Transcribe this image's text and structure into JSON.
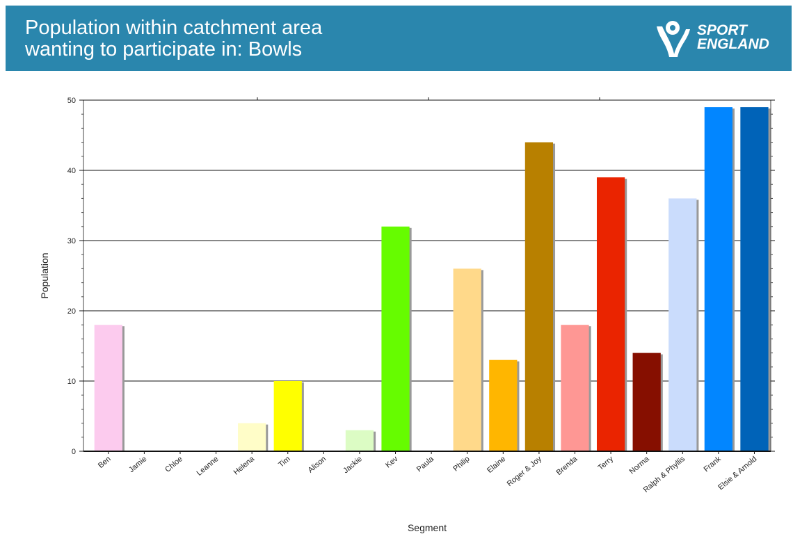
{
  "header": {
    "title_line1": "Population within catchment area",
    "title_line2": "wanting to participate in: Bowls",
    "logo_line1": "SPORT",
    "logo_line2": "ENGLAND",
    "logo_icon": "sport-england-figure-icon",
    "background": "#2a86ad"
  },
  "chart_data": {
    "type": "bar",
    "title": "",
    "xlabel": "Segment",
    "ylabel": "Population",
    "ylim": [
      0,
      50
    ],
    "yticks": [
      0,
      10,
      20,
      30,
      40,
      50
    ],
    "grid": true,
    "categories": [
      "Ben",
      "Jamie",
      "Chloe",
      "Leanne",
      "Helena",
      "Tim",
      "Alison",
      "Jackie",
      "Kev",
      "Paula",
      "Philip",
      "Elaine",
      "Roger & Joy",
      "Brenda",
      "Terry",
      "Norma",
      "Ralph & Phyllis",
      "Frank",
      "Elsie & Arnold"
    ],
    "values": [
      18,
      0,
      0,
      0,
      4,
      10,
      0,
      3,
      32,
      0,
      26,
      13,
      44,
      18,
      39,
      14,
      36,
      49,
      49
    ],
    "colors": [
      "#fccbee",
      "#cccccc",
      "#cccccc",
      "#cccccc",
      "#fffdc8",
      "#ffff00",
      "#cccccc",
      "#dcfcc4",
      "#66fc00",
      "#cccccc",
      "#ffd98a",
      "#ffb600",
      "#b88000",
      "#fe9794",
      "#ea2400",
      "#860f00",
      "#cadcfc",
      "#0286ff",
      "#0063b8"
    ]
  }
}
